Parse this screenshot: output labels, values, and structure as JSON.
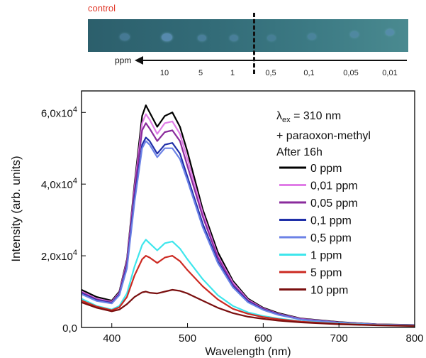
{
  "photo": {
    "control_label": "control",
    "scale_unit": "ppm",
    "concentrations": [
      "10",
      "5",
      "1",
      "0,5",
      "0,1",
      "0,05",
      "0,01"
    ]
  },
  "chart_data": {
    "type": "line",
    "xlabel": "Wavelength (nm)",
    "ylabel": "Intensity (arb. units)",
    "xlim": [
      360,
      800
    ],
    "ylim": [
      0,
      66000
    ],
    "x_ticks": [
      400,
      500,
      600,
      700,
      800
    ],
    "y_ticks": [
      {
        "value": 0,
        "mantissa": "0,0",
        "exp": ""
      },
      {
        "value": 20000,
        "mantissa": "2,0x10",
        "exp": "4"
      },
      {
        "value": 40000,
        "mantissa": "4,0x10",
        "exp": "4"
      },
      {
        "value": 60000,
        "mantissa": "6,0x10",
        "exp": "4"
      }
    ],
    "annotation": {
      "lambda_symbol": "λ",
      "lambda_sub": "ex",
      "lambda_value": " = 310 nm",
      "line2": "+ paraoxon-methyl",
      "line3": "After 16h"
    },
    "x": [
      360,
      380,
      400,
      410,
      420,
      430,
      440,
      445,
      450,
      460,
      470,
      480,
      490,
      500,
      520,
      540,
      560,
      580,
      600,
      620,
      650,
      700,
      750,
      800
    ],
    "series": [
      {
        "name": "0 ppm",
        "color": "#000000",
        "values": [
          10500,
          8500,
          7500,
          10000,
          19000,
          40000,
          59000,
          62000,
          60000,
          56000,
          59000,
          60000,
          56000,
          49000,
          33000,
          21000,
          13000,
          8000,
          5500,
          4000,
          2500,
          1500,
          900,
          700
        ]
      },
      {
        "name": "0,01 ppm",
        "color": "#e07de7",
        "values": [
          10000,
          8000,
          7200,
          9700,
          18500,
          39000,
          57000,
          59500,
          58000,
          54000,
          57000,
          57500,
          54000,
          47000,
          32000,
          20000,
          12500,
          7700,
          5300,
          3800,
          2400,
          1400,
          850,
          650
        ]
      },
      {
        "name": "0,05 ppm",
        "color": "#8a2b9c",
        "values": [
          9800,
          7800,
          7000,
          9500,
          18000,
          38000,
          55000,
          57000,
          55500,
          52000,
          54500,
          55000,
          52000,
          45000,
          31000,
          19500,
          12000,
          7500,
          5200,
          3700,
          2300,
          1400,
          800,
          600
        ]
      },
      {
        "name": "0,1 ppm",
        "color": "#1f2fa8",
        "values": [
          9500,
          7600,
          6800,
          9200,
          17000,
          36000,
          51000,
          53000,
          52000,
          48500,
          51000,
          51500,
          48500,
          42000,
          29000,
          18500,
          11500,
          7200,
          5000,
          3600,
          2200,
          1300,
          800,
          600
        ]
      },
      {
        "name": "0,5 ppm",
        "color": "#6c82e6",
        "values": [
          9300,
          7400,
          6700,
          9000,
          16500,
          35000,
          50000,
          52000,
          51000,
          47500,
          50000,
          50000,
          47000,
          41000,
          28000,
          18000,
          11200,
          7000,
          4900,
          3500,
          2200,
          1300,
          800,
          600
        ]
      },
      {
        "name": "1 ppm",
        "color": "#3ee6ec",
        "values": [
          8000,
          6000,
          5000,
          6000,
          9500,
          17000,
          23000,
          24500,
          23500,
          21500,
          23500,
          24000,
          22000,
          19000,
          13500,
          9000,
          6000,
          4200,
          3200,
          2500,
          1700,
          1100,
          700,
          500
        ]
      },
      {
        "name": "5 ppm",
        "color": "#cc2a22",
        "values": [
          7500,
          5800,
          4800,
          5600,
          8500,
          14500,
          19000,
          20000,
          19500,
          18000,
          19500,
          20000,
          18500,
          16000,
          11500,
          7800,
          5200,
          3800,
          2900,
          2300,
          1600,
          1000,
          650,
          450
        ]
      },
      {
        "name": "10 ppm",
        "color": "#7a0f0f",
        "values": [
          7000,
          5500,
          4500,
          5000,
          6500,
          8500,
          9800,
          10000,
          9700,
          9500,
          10000,
          10500,
          10200,
          9500,
          7500,
          5500,
          4000,
          3000,
          2400,
          1900,
          1400,
          900,
          600,
          400
        ]
      }
    ]
  }
}
